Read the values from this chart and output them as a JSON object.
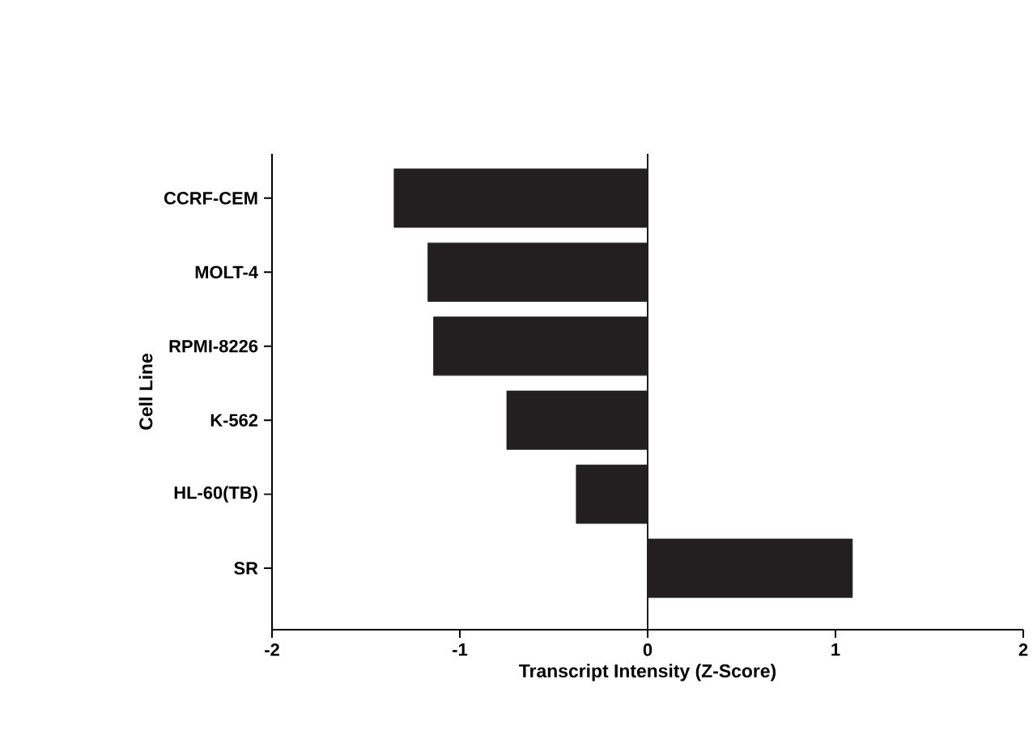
{
  "chart_data": {
    "type": "bar",
    "orientation": "horizontal",
    "xlabel": "Transcript Intensity (Z-Score)",
    "ylabel": "Cell Line",
    "categories": [
      "CCRF-CEM",
      "MOLT-4",
      "RPMI-8226",
      "K-562",
      "HL-60(TB)",
      "SR"
    ],
    "values": [
      -1.35,
      -1.17,
      -1.14,
      -0.75,
      -0.38,
      1.09
    ],
    "color": "#231f20",
    "xlim": [
      -2,
      2
    ],
    "xticks": [
      -2,
      -1,
      0,
      1,
      2
    ],
    "ref_lines": [
      {
        "axis": "x",
        "value": 0,
        "color": "#231f20"
      }
    ]
  }
}
